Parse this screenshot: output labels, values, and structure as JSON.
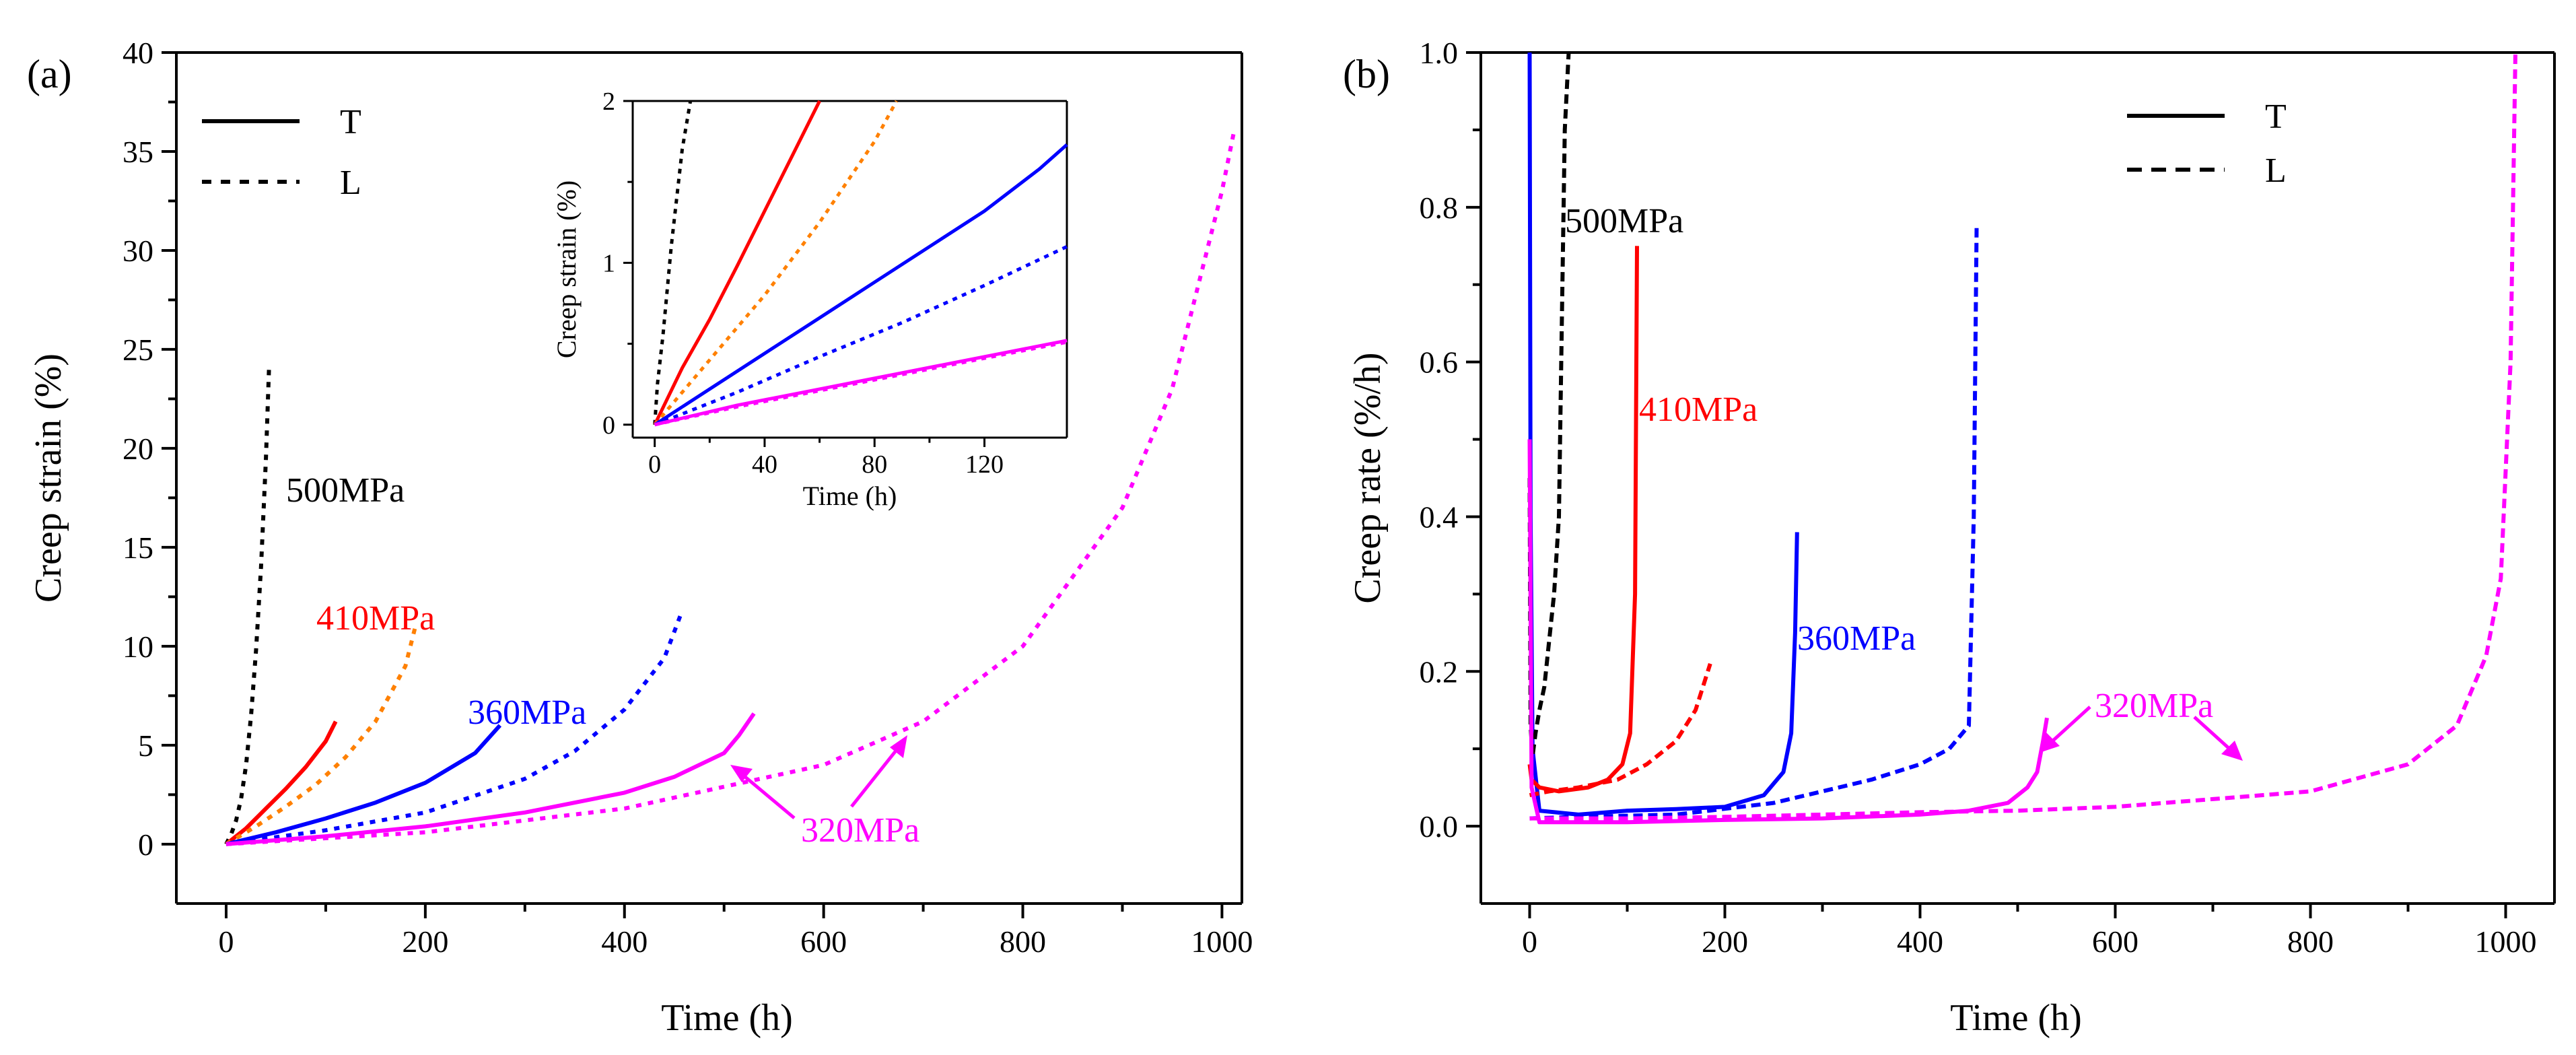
{
  "figure": {
    "panels": [
      "(a)",
      "(b)"
    ]
  },
  "chart_data": [
    {
      "panel": "(a)",
      "type": "line",
      "xlabel": "Time (h)",
      "ylabel": "Creep strain (%)",
      "xlim": [
        -50,
        1020
      ],
      "ylim": [
        -3,
        40
      ],
      "xticks": [
        "0",
        "200",
        "400",
        "600",
        "800",
        "1000"
      ],
      "yticks": [
        "0",
        "5",
        "10",
        "15",
        "20",
        "25",
        "30",
        "35",
        "40"
      ],
      "legend": {
        "position": "top-left",
        "entries": [
          {
            "label": "T",
            "style": "solid"
          },
          {
            "label": "L",
            "style": "dotted"
          }
        ]
      },
      "annotations": [
        {
          "text": "500MPa",
          "color": "#000000"
        },
        {
          "text": "410MPa",
          "color": "#ff0000"
        },
        {
          "text": "360MPa",
          "color": "#0000ff"
        },
        {
          "text": "320MPa",
          "color": "#ff00ff"
        }
      ],
      "series": [
        {
          "stress": "500MPa",
          "orientation": "L",
          "style": "dotted",
          "color": "#000000",
          "x": [
            0,
            5,
            10,
            15,
            20,
            25,
            30,
            35,
            40,
            43
          ],
          "y": [
            0,
            0.5,
            1.2,
            2.3,
            4.0,
            6.5,
            9.8,
            14.0,
            19.5,
            24.0
          ]
        },
        {
          "stress": "410MPa",
          "orientation": "T",
          "style": "solid",
          "color": "#ff0000",
          "x": [
            0,
            20,
            40,
            60,
            80,
            100,
            110
          ],
          "y": [
            0,
            0.8,
            1.8,
            2.8,
            3.9,
            5.2,
            6.2
          ]
        },
        {
          "stress": "410MPa",
          "orientation": "L",
          "style": "dotted",
          "color": "#ff8000",
          "x": [
            0,
            30,
            60,
            90,
            120,
            150,
            180,
            190
          ],
          "y": [
            0,
            0.9,
            1.9,
            3.0,
            4.4,
            6.2,
            9.0,
            11.0
          ]
        },
        {
          "stress": "360MPa",
          "orientation": "T",
          "style": "solid",
          "color": "#0000ff",
          "x": [
            0,
            50,
            100,
            150,
            200,
            250,
            275
          ],
          "y": [
            0,
            0.6,
            1.3,
            2.1,
            3.1,
            4.6,
            6.0
          ]
        },
        {
          "stress": "360MPa",
          "orientation": "L",
          "style": "dotted",
          "color": "#0000ff",
          "x": [
            0,
            100,
            200,
            300,
            350,
            400,
            440,
            458
          ],
          "y": [
            0,
            0.7,
            1.6,
            3.3,
            4.7,
            6.8,
            9.4,
            11.8
          ]
        },
        {
          "stress": "320MPa",
          "orientation": "T",
          "style": "solid",
          "color": "#ff00ff",
          "x": [
            0,
            100,
            200,
            300,
            400,
            450,
            500,
            515,
            530
          ],
          "y": [
            0,
            0.4,
            0.9,
            1.6,
            2.6,
            3.4,
            4.6,
            5.5,
            6.6
          ]
        },
        {
          "stress": "320MPa",
          "orientation": "L",
          "style": "dotted",
          "color": "#ff00ff",
          "x": [
            0,
            200,
            400,
            600,
            700,
            800,
            900,
            950,
            1000,
            1012
          ],
          "y": [
            0,
            0.6,
            1.8,
            4.0,
            6.2,
            10.0,
            17.0,
            23.0,
            33.0,
            36.0
          ]
        }
      ],
      "inset": {
        "xlabel": "Time (h)",
        "ylabel": "Creep strain (%)",
        "xlim": [
          -8,
          150
        ],
        "ylim": [
          -0.08,
          2
        ],
        "xticks": [
          "0",
          "40",
          "80",
          "120"
        ],
        "yticks": [
          "0",
          "1",
          "2"
        ],
        "series": [
          {
            "stress": "500MPa",
            "orientation": "L",
            "style": "dotted",
            "color": "#000000",
            "x": [
              0,
              1,
              3,
              6,
              10,
              13
            ],
            "y": [
              0,
              0.25,
              0.55,
              1.1,
              1.7,
              2.0
            ]
          },
          {
            "stress": "410MPa",
            "orientation": "T",
            "style": "solid",
            "color": "#ff0000",
            "x": [
              0,
              10,
              20,
              30,
              40,
              50,
              60
            ],
            "y": [
              0,
              0.35,
              0.65,
              0.98,
              1.32,
              1.66,
              2.0
            ]
          },
          {
            "stress": "410MPa",
            "orientation": "L",
            "style": "dotted",
            "color": "#ff8000",
            "x": [
              0,
              20,
              40,
              60,
              80,
              88
            ],
            "y": [
              0,
              0.4,
              0.8,
              1.25,
              1.75,
              2.0
            ]
          },
          {
            "stress": "360MPa",
            "orientation": "T",
            "style": "solid",
            "color": "#0000ff",
            "x": [
              0,
              20,
              40,
              60,
              80,
              100,
              120,
              140,
              150
            ],
            "y": [
              0,
              0.22,
              0.44,
              0.66,
              0.88,
              1.1,
              1.32,
              1.58,
              1.73
            ]
          },
          {
            "stress": "360MPa",
            "orientation": "L",
            "style": "dotted",
            "color": "#0000ff",
            "x": [
              0,
              30,
              60,
              90,
              120,
              150
            ],
            "y": [
              0,
              0.2,
              0.42,
              0.63,
              0.86,
              1.1
            ]
          },
          {
            "stress": "320MPa",
            "orientation": "T",
            "style": "solid",
            "color": "#ff00ff",
            "x": [
              0,
              30,
              60,
              90,
              120,
              150
            ],
            "y": [
              0,
              0.12,
              0.22,
              0.32,
              0.42,
              0.52
            ]
          },
          {
            "stress": "320MPa",
            "orientation": "L",
            "style": "dotted",
            "color": "#ff00ff",
            "x": [
              0,
              30,
              60,
              90,
              120,
              150
            ],
            "y": [
              0,
              0.11,
              0.21,
              0.31,
              0.41,
              0.51
            ]
          }
        ]
      }
    },
    {
      "panel": "(b)",
      "type": "line",
      "xlabel": "Time (h)",
      "ylabel": "Creep rate (%/h)",
      "xlim": [
        -50,
        1050
      ],
      "ylim": [
        -0.1,
        1.0
      ],
      "xticks": [
        "0",
        "200",
        "400",
        "600",
        "800",
        "1000"
      ],
      "yticks": [
        "0.0",
        "0.2",
        "0.4",
        "0.6",
        "0.8",
        "1.0"
      ],
      "legend": {
        "position": "top-right",
        "entries": [
          {
            "label": "T",
            "style": "solid"
          },
          {
            "label": "L",
            "style": "dashed"
          }
        ]
      },
      "annotations": [
        {
          "text": "500MPa",
          "color": "#000000"
        },
        {
          "text": "410MPa",
          "color": "#ff0000"
        },
        {
          "text": "360MPa",
          "color": "#0000ff"
        },
        {
          "text": "320MPa",
          "color": "#ff00ff"
        }
      ],
      "series": [
        {
          "stress": "360MPa",
          "orientation": "T",
          "style": "solid",
          "color": "#0000ff",
          "x": [
            0,
            1,
            3,
            10,
            50,
            100,
            150,
            200,
            240,
            260,
            268,
            272,
            274
          ],
          "y": [
            1.0,
            0.4,
            0.1,
            0.02,
            0.015,
            0.02,
            0.022,
            0.025,
            0.04,
            0.07,
            0.12,
            0.25,
            0.38
          ]
        },
        {
          "stress": "500MPa",
          "orientation": "L",
          "style": "dashed",
          "color": "#000000",
          "x": [
            0,
            1,
            3,
            6,
            10,
            15,
            20,
            25,
            28,
            30,
            33,
            36,
            40
          ],
          "y": [
            0.45,
            0.13,
            0.09,
            0.12,
            0.15,
            0.18,
            0.24,
            0.3,
            0.36,
            0.4,
            0.65,
            0.9,
            1.0
          ]
        },
        {
          "stress": "410MPa",
          "orientation": "T",
          "style": "solid",
          "color": "#ff0000",
          "x": [
            0,
            2,
            10,
            30,
            60,
            80,
            95,
            103,
            108,
            110
          ],
          "y": [
            0.08,
            0.06,
            0.05,
            0.045,
            0.05,
            0.06,
            0.08,
            0.12,
            0.3,
            0.75
          ]
        },
        {
          "stress": "410MPa",
          "orientation": "L",
          "style": "dashed",
          "color": "#ff0000",
          "x": [
            0,
            20,
            50,
            90,
            120,
            150,
            170,
            185
          ],
          "y": [
            0.04,
            0.045,
            0.05,
            0.06,
            0.08,
            0.11,
            0.15,
            0.21
          ]
        },
        {
          "stress": "360MPa",
          "orientation": "L",
          "style": "dashed",
          "color": "#0000ff",
          "x": [
            0,
            50,
            150,
            250,
            300,
            350,
            400,
            430,
            450,
            455,
            458
          ],
          "y": [
            0.01,
            0.012,
            0.015,
            0.03,
            0.045,
            0.06,
            0.08,
            0.1,
            0.13,
            0.4,
            0.78
          ]
        },
        {
          "stress": "320MPa",
          "orientation": "T",
          "style": "solid",
          "color": "#ff00ff",
          "x": [
            0,
            2,
            10,
            100,
            200,
            300,
            400,
            450,
            490,
            510,
            520,
            526,
            530
          ],
          "y": [
            0.5,
            0.05,
            0.005,
            0.005,
            0.008,
            0.01,
            0.015,
            0.02,
            0.03,
            0.05,
            0.07,
            0.11,
            0.14
          ]
        },
        {
          "stress": "320MPa",
          "orientation": "L",
          "style": "dashed",
          "color": "#ff00ff",
          "x": [
            0,
            100,
            200,
            300,
            400,
            500,
            600,
            700,
            800,
            900,
            950,
            980,
            995,
            1005,
            1010
          ],
          "y": [
            0.01,
            0.01,
            0.012,
            0.015,
            0.018,
            0.02,
            0.025,
            0.035,
            0.045,
            0.08,
            0.13,
            0.22,
            0.32,
            0.6,
            1.0
          ]
        }
      ]
    }
  ]
}
